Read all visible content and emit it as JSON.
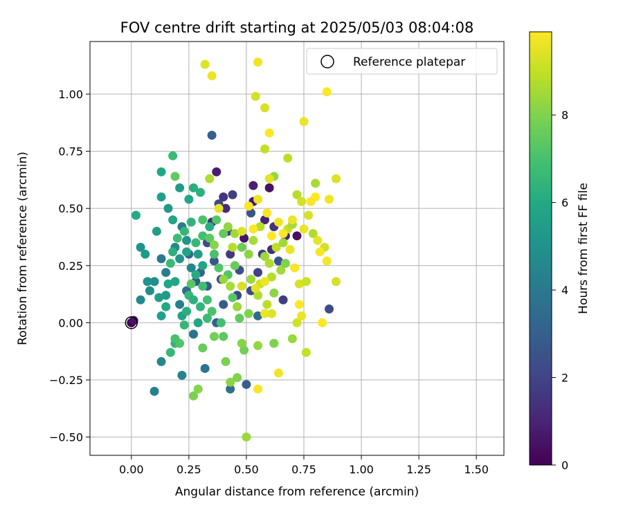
{
  "chart_data": {
    "type": "scatter",
    "title": "FOV centre drift starting at 2025/05/03 08:04:08",
    "xlabel": "Angular distance from reference (arcmin)",
    "ylabel": "Rotation from reference (arcmin)",
    "xlim": [
      -0.18,
      1.62
    ],
    "ylim": [
      -0.58,
      1.23
    ],
    "xticks": [
      "0.00",
      "0.25",
      "0.50",
      "0.75",
      "1.00",
      "1.25",
      "1.50"
    ],
    "yticks": [
      "−0.50",
      "−0.25",
      "0.00",
      "0.25",
      "0.50",
      "0.75",
      "1.00"
    ],
    "grid": true,
    "legend": {
      "position": "top-right",
      "label": "Reference platepar",
      "marker": "open-circle"
    },
    "colorbar": {
      "label": "Hours from first FF file",
      "colormap": "viridis",
      "range": [
        0,
        9.9
      ],
      "ticks": [
        "0",
        "2",
        "4",
        "6",
        "8"
      ]
    },
    "reference_point": {
      "x": 0.0,
      "y": 0.0
    },
    "series": [
      {
        "points": [
          [
            0.0,
            0.0,
            0.0
          ],
          [
            0.01,
            0.01,
            0.5
          ],
          [
            0.35,
            0.82,
            3.0
          ],
          [
            0.37,
            0.66,
            0.8
          ],
          [
            0.4,
            0.55,
            1.5
          ],
          [
            0.44,
            0.56,
            1.8
          ],
          [
            0.53,
            0.6,
            0.9
          ],
          [
            0.6,
            0.59,
            0.5
          ],
          [
            0.35,
            0.44,
            1.5
          ],
          [
            0.38,
            0.52,
            2.0
          ],
          [
            0.41,
            0.5,
            1.2
          ],
          [
            0.49,
            0.37,
            0.6
          ],
          [
            0.52,
            0.48,
            2.5
          ],
          [
            0.58,
            0.45,
            1.0
          ],
          [
            0.33,
            0.35,
            2.2
          ],
          [
            0.36,
            0.27,
            2.6
          ],
          [
            0.3,
            0.22,
            3.2
          ],
          [
            0.33,
            0.16,
            2.8
          ],
          [
            0.43,
            0.3,
            1.6
          ],
          [
            0.46,
            0.12,
            2.1
          ],
          [
            0.55,
            0.22,
            1.9
          ],
          [
            0.62,
            0.42,
            1.4
          ],
          [
            0.67,
            0.38,
            1.1
          ],
          [
            0.66,
            0.1,
            1.7
          ],
          [
            0.55,
            0.03,
            3.4
          ],
          [
            0.5,
            -0.27,
            3.0
          ],
          [
            0.43,
            -0.29,
            3.6
          ],
          [
            0.32,
            -0.2,
            3.9
          ],
          [
            0.86,
            0.06,
            2.3
          ],
          [
            0.37,
            0.0,
            3.1
          ],
          [
            0.27,
            -0.05,
            3.8
          ],
          [
            0.4,
            0.08,
            2.9
          ],
          [
            0.61,
            0.32,
            1.3
          ],
          [
            0.53,
            0.53,
            0.7
          ],
          [
            0.47,
            0.23,
            2.4
          ],
          [
            0.72,
            0.38,
            0.4
          ],
          [
            0.25,
            0.3,
            3.3
          ],
          [
            0.24,
            0.14,
            3.5
          ],
          [
            0.28,
            0.18,
            2.7
          ],
          [
            0.39,
            0.19,
            2.0
          ],
          [
            0.52,
            0.14,
            2.2
          ],
          [
            0.57,
            0.3,
            1.8
          ],
          [
            0.64,
            0.27,
            2.6
          ],
          [
            0.42,
            0.4,
            1.9
          ],
          [
            0.13,
            -0.17,
            4.5
          ],
          [
            0.1,
            -0.3,
            4.3
          ],
          [
            0.22,
            -0.23,
            4.4
          ],
          [
            0.04,
            0.1,
            4.6
          ],
          [
            0.1,
            0.18,
            4.9
          ],
          [
            0.15,
            0.22,
            4.2
          ],
          [
            0.22,
            0.42,
            4.1
          ],
          [
            0.19,
            0.33,
            4.7
          ],
          [
            0.13,
            0.28,
            4.0
          ],
          [
            0.08,
            0.14,
            4.8
          ],
          [
            0.21,
            0.08,
            4.3
          ],
          [
            0.26,
            0.24,
            4.5
          ],
          [
            0.04,
            0.33,
            5.0
          ],
          [
            0.06,
            0.3,
            5.3
          ],
          [
            0.11,
            0.4,
            5.5
          ],
          [
            0.07,
            0.18,
            5.1
          ],
          [
            0.13,
            0.03,
            5.6
          ],
          [
            0.15,
            0.12,
            5.4
          ],
          [
            0.19,
            0.18,
            5.8
          ],
          [
            0.21,
            0.28,
            5.2
          ],
          [
            0.24,
            0.31,
            5.7
          ],
          [
            0.02,
            0.47,
            6.0
          ],
          [
            0.13,
            0.66,
            5.9
          ],
          [
            0.13,
            0.55,
            5.6
          ],
          [
            0.16,
            0.5,
            5.3
          ],
          [
            0.18,
            0.45,
            5.8
          ],
          [
            0.21,
            0.59,
            5.4
          ],
          [
            0.25,
            0.54,
            5.9
          ],
          [
            0.27,
            0.59,
            6.2
          ],
          [
            0.3,
            0.57,
            6.3
          ],
          [
            0.24,
            0.36,
            5.1
          ],
          [
            0.29,
            0.3,
            5.5
          ],
          [
            0.31,
            0.25,
            5.8
          ],
          [
            0.28,
            0.21,
            6.1
          ],
          [
            0.22,
            0.03,
            5.7
          ],
          [
            0.19,
            -0.09,
            6.4
          ],
          [
            0.15,
            0.07,
            6.0
          ],
          [
            0.25,
            0.12,
            6.6
          ],
          [
            0.27,
            0.1,
            6.3
          ],
          [
            0.33,
            0.1,
            6.9
          ],
          [
            0.35,
            0.05,
            7.1
          ],
          [
            0.29,
            0.0,
            5.9
          ],
          [
            0.17,
            0.26,
            6.7
          ],
          [
            0.2,
            0.37,
            6.8
          ],
          [
            0.23,
            0.4,
            6.5
          ],
          [
            0.26,
            0.44,
            6.4
          ],
          [
            0.28,
            0.35,
            6.6
          ],
          [
            0.31,
            0.38,
            6.9
          ],
          [
            0.34,
            0.42,
            6.2
          ],
          [
            0.36,
            0.3,
            7.0
          ],
          [
            0.38,
            0.24,
            7.2
          ],
          [
            0.31,
            0.16,
            6.8
          ],
          [
            0.26,
            0.17,
            7.3
          ],
          [
            0.18,
            0.73,
            6.7
          ],
          [
            0.19,
            0.64,
            7.5
          ],
          [
            0.31,
            0.45,
            7.1
          ],
          [
            0.34,
            0.37,
            7.4
          ],
          [
            0.37,
            0.45,
            7.3
          ],
          [
            0.4,
            0.39,
            7.5
          ],
          [
            0.42,
            0.21,
            7.2
          ],
          [
            0.45,
            0.25,
            7.6
          ],
          [
            0.48,
            0.33,
            7.7
          ],
          [
            0.44,
            0.11,
            7.3
          ],
          [
            0.47,
            0.02,
            7.5
          ],
          [
            0.4,
            -0.06,
            7.4
          ],
          [
            0.36,
            -0.06,
            7.8
          ],
          [
            0.41,
            -0.17,
            7.9
          ],
          [
            0.21,
            -0.09,
            7.2
          ],
          [
            0.19,
            -0.07,
            7.0
          ],
          [
            0.31,
            -0.11,
            7.6
          ],
          [
            0.29,
            -0.29,
            8.1
          ],
          [
            0.27,
            -0.32,
            7.9
          ],
          [
            0.43,
            -0.26,
            8.2
          ],
          [
            0.46,
            -0.24,
            8.0
          ],
          [
            0.5,
            -0.5,
            8.4
          ],
          [
            0.49,
            -0.12,
            7.8
          ],
          [
            0.48,
            -0.09,
            8.1
          ],
          [
            0.55,
            -0.1,
            8.3
          ],
          [
            0.62,
            -0.09,
            8.0
          ],
          [
            0.7,
            -0.07,
            8.4
          ],
          [
            0.34,
            0.63,
            8.7
          ],
          [
            0.42,
            0.42,
            8.3
          ],
          [
            0.45,
            0.39,
            8.5
          ],
          [
            0.51,
            0.3,
            8.2
          ],
          [
            0.53,
            0.36,
            8.6
          ],
          [
            0.56,
            0.42,
            8.8
          ],
          [
            0.58,
            0.29,
            8.4
          ],
          [
            0.6,
            0.26,
            8.7
          ],
          [
            0.63,
            0.33,
            8.9
          ],
          [
            0.65,
            0.23,
            8.5
          ],
          [
            0.68,
            0.41,
            9.0
          ],
          [
            0.7,
            0.43,
            8.6
          ],
          [
            0.72,
            0.56,
            8.8
          ],
          [
            0.74,
            0.53,
            9.2
          ],
          [
            0.62,
            0.64,
            8.3
          ],
          [
            0.58,
            0.76,
            9.0
          ],
          [
            0.68,
            0.72,
            8.9
          ],
          [
            0.52,
            0.19,
            8.4
          ],
          [
            0.55,
            0.12,
            8.7
          ],
          [
            0.59,
            0.08,
            8.9
          ],
          [
            0.56,
            0.17,
            9.1
          ],
          [
            0.61,
            0.2,
            8.8
          ],
          [
            0.66,
            0.35,
            8.5
          ],
          [
            0.48,
            0.16,
            9.3
          ],
          [
            0.54,
            0.15,
            9.5
          ],
          [
            0.58,
            0.04,
            9.6
          ],
          [
            0.61,
            0.04,
            9.4
          ],
          [
            0.64,
            -0.22,
            9.7
          ],
          [
            0.55,
            -0.29,
            9.8
          ],
          [
            0.72,
            0.0,
            9.2
          ],
          [
            0.74,
            0.03,
            9.6
          ],
          [
            0.76,
            -0.13,
            9.0
          ],
          [
            0.73,
            0.17,
            9.3
          ],
          [
            0.76,
            0.18,
            9.1
          ],
          [
            0.79,
            0.39,
            8.7
          ],
          [
            0.8,
            0.61,
            8.6
          ],
          [
            0.81,
            0.36,
            9.5
          ],
          [
            0.84,
            0.33,
            9.2
          ],
          [
            0.85,
            0.27,
            9.8
          ],
          [
            0.83,
            0.0,
            9.9
          ],
          [
            0.86,
            0.54,
            9.7
          ],
          [
            0.89,
            0.63,
            9.4
          ],
          [
            0.89,
            0.18,
            9.3
          ],
          [
            0.78,
            0.53,
            9.8
          ],
          [
            0.75,
            0.88,
            9.6
          ],
          [
            0.85,
            1.01,
            9.9
          ],
          [
            0.32,
            1.13,
            9.4
          ],
          [
            0.35,
            1.08,
            9.6
          ],
          [
            0.54,
            0.99,
            9.2
          ],
          [
            0.55,
            1.14,
            9.7
          ],
          [
            0.58,
            0.94,
            9.3
          ],
          [
            0.6,
            0.83,
            9.9
          ],
          [
            0.6,
            0.63,
            9.5
          ],
          [
            0.59,
            0.48,
            9.8
          ],
          [
            0.55,
            0.54,
            9.6
          ],
          [
            0.51,
            0.51,
            9.9
          ],
          [
            0.38,
            0.5,
            9.5
          ],
          [
            0.48,
            0.4,
            9.4
          ],
          [
            0.64,
            0.44,
            9.7
          ],
          [
            0.66,
            0.39,
            9.9
          ],
          [
            0.69,
            0.32,
            9.6
          ],
          [
            0.71,
            0.24,
            9.8
          ],
          [
            0.73,
            0.08,
            9.9
          ],
          [
            0.7,
            0.45,
            9.6
          ],
          [
            0.77,
            0.47,
            9.3
          ],
          [
            0.8,
            0.55,
            9.9
          ],
          [
            0.82,
            0.31,
            9.8
          ],
          [
            0.75,
            0.41,
            9.6
          ],
          [
            0.61,
            0.38,
            9.9
          ],
          [
            0.58,
            0.18,
            9.7
          ],
          [
            0.53,
            0.41,
            9.9
          ],
          [
            0.62,
            0.13,
            8.2
          ],
          [
            0.67,
            0.26,
            8.0
          ],
          [
            0.44,
            0.33,
            8.8
          ],
          [
            0.36,
            0.34,
            8.1
          ],
          [
            0.4,
            0.19,
            8.3
          ],
          [
            0.43,
            0.16,
            8.6
          ],
          [
            0.46,
            0.07,
            8.4
          ],
          [
            0.51,
            0.04,
            8.0
          ],
          [
            0.39,
            0.0,
            6.9
          ],
          [
            0.33,
            0.02,
            6.7
          ],
          [
            0.3,
            0.07,
            6.4
          ],
          [
            0.24,
            0.05,
            6.2
          ],
          [
            0.17,
            -0.13,
            6.6
          ],
          [
            0.23,
            -0.01,
            6.5
          ],
          [
            0.12,
            0.11,
            5.5
          ],
          [
            0.16,
            0.17,
            5.9
          ],
          [
            0.18,
            0.31,
            6.3
          ]
        ]
      }
    ]
  }
}
